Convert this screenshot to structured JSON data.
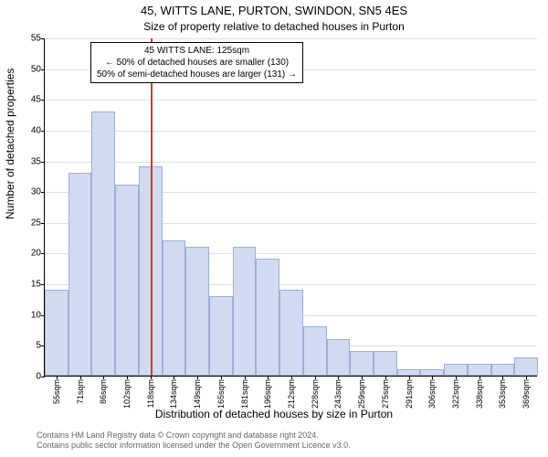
{
  "title": "45, WITTS LANE, PURTON, SWINDON, SN5 4ES",
  "subtitle": "Size of property relative to detached houses in Purton",
  "ylabel": "Number of detached properties",
  "xlabel": "Distribution of detached houses by size in Purton",
  "footer_line1": "Contains HM Land Registry data © Crown copyright and database right 2024.",
  "footer_line2": "Contains public sector information licensed under the Open Government Licence v3.0.",
  "chart": {
    "type": "histogram",
    "ylim": [
      0,
      55
    ],
    "ytick_step": 5,
    "yticks": [
      0,
      5,
      10,
      15,
      20,
      25,
      30,
      35,
      40,
      45,
      50,
      55
    ],
    "xticks": [
      "55sqm",
      "71sqm",
      "86sqm",
      "102sqm",
      "118sqm",
      "134sqm",
      "149sqm",
      "165sqm",
      "181sqm",
      "196sqm",
      "212sqm",
      "228sqm",
      "243sqm",
      "259sqm",
      "275sqm",
      "291sqm",
      "306sqm",
      "322sqm",
      "338sqm",
      "353sqm",
      "369sqm"
    ],
    "values": [
      14,
      33,
      43,
      31,
      34,
      22,
      21,
      13,
      21,
      19,
      14,
      8,
      6,
      4,
      4,
      1,
      1,
      2,
      2,
      2,
      3
    ],
    "bar_fill": "#d0daf0",
    "bar_stroke": "#9ab0d8",
    "grid_color": "#e0e0e0",
    "background_color": "#ffffff",
    "ref_line": {
      "position_index": 4.5,
      "color": "#d43b2a"
    },
    "annotation": {
      "line1": "45 WITTS LANE: 125sqm",
      "line2": "← 50% of detached houses are smaller (130)",
      "line3": "50% of semi-detached houses are larger (131) →"
    }
  }
}
